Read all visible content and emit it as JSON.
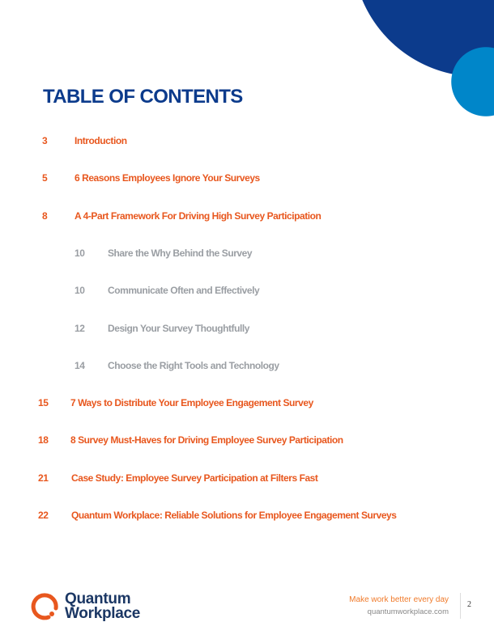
{
  "title": "TABLE OF CONTENTS",
  "entries": [
    {
      "page": "3",
      "label": "Introduction",
      "level": 1
    },
    {
      "page": "5",
      "label": "6 Reasons Employees Ignore Your Surveys",
      "level": 1
    },
    {
      "page": "8",
      "label": "A 4-Part Framework For Driving High Survey Participation",
      "level": 1
    },
    {
      "page": "10",
      "label": "Share the Why Behind the Survey",
      "level": 2
    },
    {
      "page": "10",
      "label": "Communicate Often and Effectively",
      "level": 2
    },
    {
      "page": "12",
      "label": "Design Your Survey Thoughtfully",
      "level": 2
    },
    {
      "page": "14",
      "label": "Choose the Right Tools and Technology",
      "level": 2
    },
    {
      "page": "15",
      "label": "7 Ways to Distribute Your Employee Engagement Survey",
      "level": 1
    },
    {
      "page": "18",
      "label": "8 Survey Must-Haves for Driving Employee Survey Participation",
      "level": 1
    },
    {
      "page": "21",
      "label": "Case Study: Employee Survey Participation at Filters Fast",
      "level": 1
    },
    {
      "page": "22",
      "label": "Quantum Workplace: Reliable Solutions for Employee Engagement Surveys",
      "level": 1
    }
  ],
  "footer": {
    "logo": {
      "line1": "Quantum",
      "line2": "Workplace"
    },
    "tagline": "Make work better every day",
    "website": "quantumworkplace.com",
    "page_number": "2"
  },
  "colors": {
    "navy": "#0c3b8c",
    "blue": "#0086c9",
    "orange": "#e8571e",
    "grey": "#9a9ea3"
  }
}
